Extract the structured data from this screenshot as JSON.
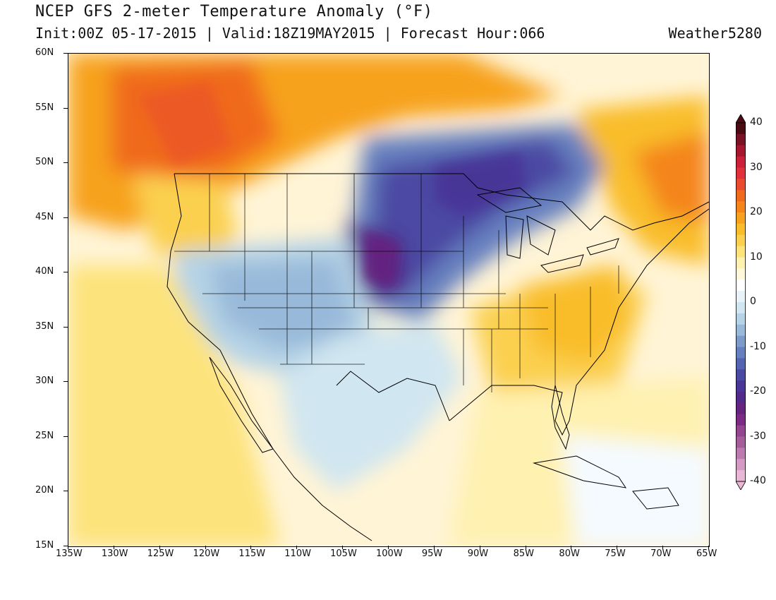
{
  "header": {
    "title": "NCEP GFS 2-meter Temperature Anomaly (°F)",
    "subtitle": "Init:00Z 05-17-2015 | Valid:18Z19MAY2015 | Forecast Hour:066",
    "credit": "Weather5280"
  },
  "axes": {
    "lat_labels": [
      "60N",
      "55N",
      "50N",
      "45N",
      "40N",
      "35N",
      "30N",
      "25N",
      "20N",
      "15N"
    ],
    "lon_labels": [
      "135W",
      "130W",
      "125W",
      "120W",
      "115W",
      "110W",
      "105W",
      "100W",
      "95W",
      "90W",
      "85W",
      "80W",
      "75W",
      "70W",
      "65W"
    ]
  },
  "colorbar": {
    "labels": [
      "40",
      "30",
      "20",
      "10",
      "0",
      "-10",
      "-20",
      "-30",
      "-40"
    ],
    "colors": [
      "#4a0b12",
      "#7a1225",
      "#a5162f",
      "#cc1f3a",
      "#e2303a",
      "#ea4b2e",
      "#f06a1c",
      "#f4851a",
      "#f7a21e",
      "#f9bd2c",
      "#fbd050",
      "#fde37c",
      "#fff1b0",
      "#fff9da",
      "#ffffff",
      "#e8f3f8",
      "#d0e6f0",
      "#b5d3e6",
      "#98b9d9",
      "#7c9bcb",
      "#6680bf",
      "#5564b0",
      "#4b4aa3",
      "#4a3696",
      "#522a8a",
      "#66247f",
      "#7d2a86",
      "#93468f",
      "#a65d9b",
      "#bd7aaf",
      "#d59ac4",
      "#e8b7d6"
    ]
  }
}
